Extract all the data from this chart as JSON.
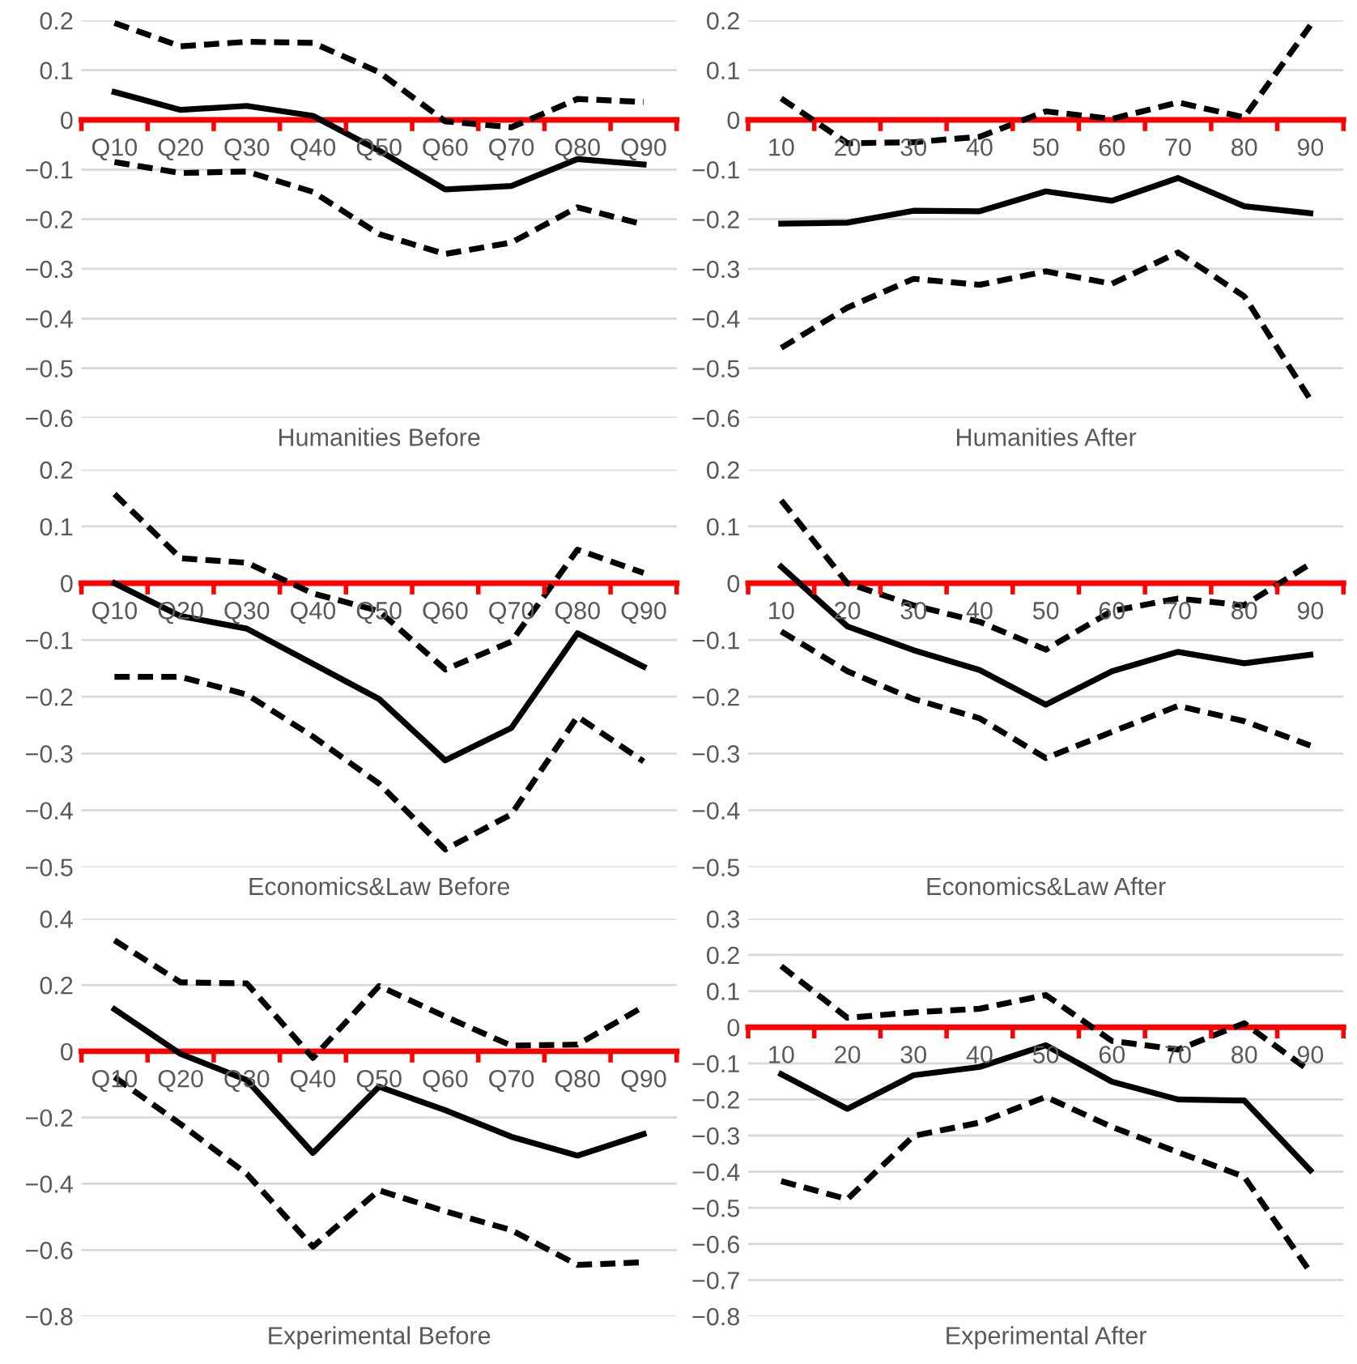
{
  "chart_data": [
    {
      "type": "line",
      "xlabel": "Humanities Before",
      "categories": [
        "Q10",
        "Q20",
        "Q30",
        "Q40",
        "Q50",
        "Q60",
        "Q70",
        "Q80",
        "Q90"
      ],
      "ylim": [
        -0.6,
        0.2
      ],
      "yticks": [
        -0.6,
        -0.5,
        -0.4,
        -0.3,
        -0.2,
        -0.1,
        0,
        0.1,
        0.2
      ],
      "grid": "y",
      "series": [
        {
          "color": "#000000",
          "line_style": "solid",
          "values": [
            0.056,
            0.02,
            0.028,
            0.008,
            -0.062,
            -0.14,
            -0.133,
            -0.079,
            -0.09
          ]
        },
        {
          "color": "#000000",
          "line_style": "dashed",
          "values": [
            0.195,
            0.148,
            0.157,
            0.155,
            0.096,
            -0.003,
            -0.015,
            0.042,
            0.036
          ]
        },
        {
          "color": "#000000",
          "line_style": "dashed",
          "values": [
            -0.085,
            -0.107,
            -0.104,
            -0.145,
            -0.23,
            -0.27,
            -0.247,
            -0.176,
            -0.211
          ]
        }
      ]
    },
    {
      "type": "line",
      "xlabel": "Humanities After",
      "categories": [
        "10",
        "20",
        "30",
        "40",
        "50",
        "60",
        "70",
        "80",
        "90"
      ],
      "ylim": [
        -0.6,
        0.2
      ],
      "yticks": [
        -0.6,
        -0.5,
        -0.4,
        -0.3,
        -0.2,
        -0.1,
        0,
        0.1,
        0.2
      ],
      "grid": "y",
      "series": [
        {
          "color": "#000000",
          "line_style": "solid",
          "values": [
            -0.209,
            -0.207,
            -0.183,
            -0.184,
            -0.144,
            -0.163,
            -0.117,
            -0.174,
            -0.188
          ]
        },
        {
          "color": "#000000",
          "line_style": "dashed",
          "values": [
            0.043,
            -0.047,
            -0.045,
            -0.034,
            0.017,
            0.002,
            0.035,
            0.005,
            0.19
          ]
        },
        {
          "color": "#000000",
          "line_style": "dashed",
          "values": [
            -0.459,
            -0.378,
            -0.32,
            -0.332,
            -0.305,
            -0.33,
            -0.267,
            -0.355,
            -0.563
          ]
        }
      ]
    },
    {
      "type": "line",
      "xlabel": "Economics&Law Before",
      "categories": [
        "Q10",
        "Q20",
        "Q30",
        "Q40",
        "Q50",
        "Q60",
        "Q70",
        "Q80",
        "Q90"
      ],
      "ylim": [
        -0.5,
        0.2
      ],
      "yticks": [
        -0.5,
        -0.4,
        -0.3,
        -0.2,
        -0.1,
        0,
        0.1,
        0.2
      ],
      "grid": "y",
      "series": [
        {
          "color": "#000000",
          "line_style": "solid",
          "values": [
            0,
            -0.058,
            -0.08,
            -0.142,
            -0.204,
            -0.312,
            -0.255,
            -0.088,
            -0.147
          ]
        },
        {
          "color": "#000000",
          "line_style": "dashed",
          "values": [
            0.157,
            0.044,
            0.036,
            -0.018,
            -0.049,
            -0.152,
            -0.103,
            0.059,
            0.018
          ]
        },
        {
          "color": "#000000",
          "line_style": "dashed",
          "values": [
            -0.165,
            -0.165,
            -0.196,
            -0.27,
            -0.353,
            -0.469,
            -0.407,
            -0.235,
            -0.314
          ]
        }
      ]
    },
    {
      "type": "line",
      "xlabel": "Economics&Law After",
      "categories": [
        "10",
        "20",
        "30",
        "40",
        "50",
        "60",
        "70",
        "80",
        "90"
      ],
      "ylim": [
        -0.5,
        0.2
      ],
      "yticks": [
        -0.5,
        -0.4,
        -0.3,
        -0.2,
        -0.1,
        0,
        0.1,
        0.2
      ],
      "grid": "y",
      "series": [
        {
          "color": "#000000",
          "line_style": "solid",
          "values": [
            0.029,
            -0.076,
            -0.118,
            -0.153,
            -0.214,
            -0.155,
            -0.121,
            -0.141,
            -0.126
          ]
        },
        {
          "color": "#000000",
          "line_style": "dashed",
          "values": [
            0.146,
            0,
            -0.039,
            -0.068,
            -0.117,
            -0.049,
            -0.027,
            -0.039,
            0.034
          ]
        },
        {
          "color": "#000000",
          "line_style": "dashed",
          "values": [
            -0.085,
            -0.155,
            -0.204,
            -0.238,
            -0.308,
            -0.262,
            -0.216,
            -0.243,
            -0.286
          ]
        }
      ]
    },
    {
      "type": "line",
      "xlabel": "Experimental Before",
      "categories": [
        "Q10",
        "Q20",
        "Q30",
        "Q40",
        "Q50",
        "Q60",
        "Q70",
        "Q80",
        "Q90"
      ],
      "ylim": [
        -0.8,
        0.4
      ],
      "yticks": [
        -0.8,
        -0.6,
        -0.4,
        -0.2,
        0,
        0.2,
        0.4
      ],
      "grid": "y",
      "series": [
        {
          "color": "#000000",
          "line_style": "solid",
          "values": [
            0.127,
            -0.008,
            -0.087,
            -0.307,
            -0.107,
            -0.178,
            -0.258,
            -0.315,
            -0.25
          ]
        },
        {
          "color": "#000000",
          "line_style": "dashed",
          "values": [
            0.335,
            0.208,
            0.205,
            -0.02,
            0.197,
            0.105,
            0.017,
            0.02,
            0.135
          ]
        },
        {
          "color": "#000000",
          "line_style": "dashed",
          "values": [
            -0.078,
            -0.22,
            -0.37,
            -0.59,
            -0.42,
            -0.483,
            -0.54,
            -0.645,
            -0.637
          ]
        }
      ]
    },
    {
      "type": "line",
      "xlabel": "Experimental After",
      "categories": [
        "10",
        "20",
        "30",
        "40",
        "50",
        "60",
        "70",
        "80",
        "90"
      ],
      "ylim": [
        -0.8,
        0.3
      ],
      "yticks": [
        -0.8,
        -0.7,
        -0.6,
        -0.5,
        -0.4,
        -0.3,
        -0.2,
        -0.1,
        0,
        0.1,
        0.2,
        0.3
      ],
      "grid": "y",
      "series": [
        {
          "color": "#000000",
          "line_style": "solid",
          "values": [
            -0.13,
            -0.226,
            -0.133,
            -0.11,
            -0.05,
            -0.151,
            -0.2,
            -0.203,
            -0.396
          ]
        },
        {
          "color": "#000000",
          "line_style": "dashed",
          "values": [
            0.169,
            0.026,
            0.041,
            0.051,
            0.089,
            -0.038,
            -0.062,
            0.011,
            -0.122
          ]
        },
        {
          "color": "#000000",
          "line_style": "dashed",
          "values": [
            -0.426,
            -0.476,
            -0.301,
            -0.264,
            -0.193,
            -0.276,
            -0.346,
            -0.414,
            -0.678
          ]
        }
      ]
    }
  ]
}
